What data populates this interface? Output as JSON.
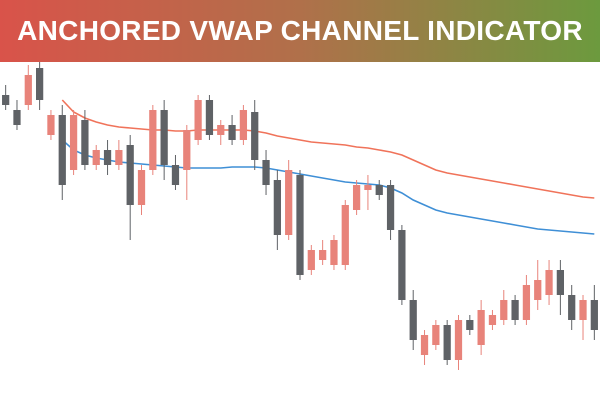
{
  "chart_data": {
    "type": "candlestick",
    "title": "ANCHORED VWAP CHANNEL INDICATOR",
    "ylim": [
      0,
      340
    ],
    "up_color": "#e8837a",
    "down_color": "#5f6266",
    "open": [
      305,
      290,
      295,
      332,
      265,
      285,
      230,
      280,
      235,
      250,
      235,
      255,
      195,
      230,
      290,
      235,
      230,
      260,
      300,
      265,
      275,
      260,
      288,
      240,
      220,
      165,
      225,
      130,
      140,
      135,
      135,
      190,
      210,
      215,
      215,
      170,
      100,
      45,
      55,
      75,
      40,
      80,
      55,
      75,
      80,
      100,
      80,
      100,
      105,
      130,
      105,
      80,
      100
    ],
    "close": [
      295,
      275,
      325,
      300,
      285,
      215,
      285,
      235,
      250,
      235,
      250,
      195,
      230,
      290,
      235,
      215,
      270,
      300,
      265,
      275,
      260,
      290,
      240,
      215,
      165,
      230,
      125,
      150,
      150,
      160,
      195,
      215,
      215,
      205,
      170,
      100,
      60,
      65,
      75,
      40,
      80,
      70,
      90,
      85,
      100,
      80,
      115,
      120,
      130,
      105,
      80,
      100,
      70
    ],
    "high": [
      315,
      300,
      335,
      340,
      290,
      295,
      290,
      290,
      255,
      260,
      260,
      265,
      235,
      295,
      300,
      245,
      275,
      305,
      305,
      280,
      285,
      295,
      300,
      250,
      230,
      240,
      230,
      155,
      160,
      165,
      200,
      220,
      225,
      220,
      220,
      175,
      110,
      70,
      80,
      80,
      85,
      85,
      100,
      90,
      110,
      105,
      125,
      140,
      140,
      140,
      115,
      105,
      115
    ],
    "low": [
      290,
      270,
      290,
      290,
      260,
      200,
      225,
      230,
      230,
      225,
      230,
      160,
      185,
      225,
      220,
      210,
      200,
      255,
      260,
      255,
      255,
      255,
      230,
      205,
      150,
      160,
      120,
      125,
      135,
      130,
      130,
      185,
      190,
      200,
      160,
      95,
      50,
      35,
      50,
      35,
      30,
      65,
      45,
      70,
      75,
      75,
      75,
      90,
      95,
      85,
      70,
      60,
      60
    ],
    "lines": [
      {
        "color": "#f0735a",
        "values": [
          null,
          null,
          null,
          null,
          null,
          300,
          288,
          282,
          278,
          275,
          273,
          272,
          271,
          270,
          270,
          269,
          269,
          270,
          270,
          270,
          270,
          270,
          269,
          267,
          264,
          262,
          260,
          258,
          257,
          256,
          255,
          253,
          252,
          250,
          248,
          245,
          240,
          235,
          230,
          227,
          225,
          223,
          221,
          219,
          217,
          215,
          213,
          211,
          209,
          207,
          205,
          203,
          202
        ]
      },
      {
        "color": "#3f8fd6",
        "values": [
          null,
          null,
          null,
          null,
          null,
          260,
          250,
          245,
          242,
          240,
          238,
          237,
          236,
          235,
          234,
          233,
          232,
          232,
          232,
          232,
          233,
          233,
          233,
          232,
          230,
          228,
          226,
          224,
          222,
          220,
          218,
          217,
          216,
          215,
          212,
          207,
          200,
          195,
          190,
          187,
          185,
          183,
          181,
          179,
          177,
          175,
          173,
          171,
          170,
          169,
          168,
          167,
          166
        ]
      }
    ]
  }
}
